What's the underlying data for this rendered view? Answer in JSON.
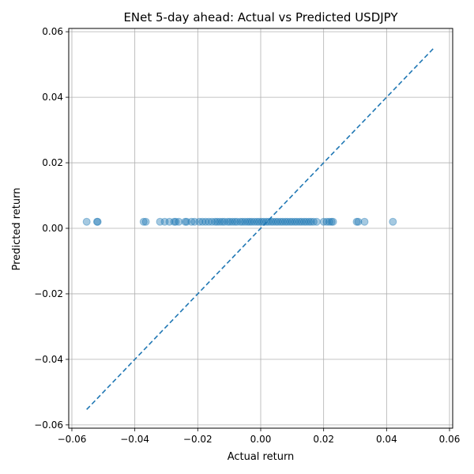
{
  "chart_data": {
    "type": "scatter",
    "title": "ENet 5-day ahead: Actual vs Predicted USDJPY",
    "xlabel": "Actual return",
    "ylabel": "Predicted return",
    "xlim": [
      -0.061,
      0.061
    ],
    "ylim": [
      -0.061,
      0.061
    ],
    "xticks": [
      -0.06,
      -0.04,
      -0.02,
      0.0,
      0.02,
      0.04,
      0.06
    ],
    "yticks": [
      -0.06,
      -0.04,
      -0.02,
      0.0,
      0.02,
      0.04,
      0.06
    ],
    "xtick_labels": [
      "−0.06",
      "−0.04",
      "−0.02",
      "0.00",
      "0.02",
      "0.04",
      "0.06"
    ],
    "ytick_labels": [
      "−0.06",
      "−0.04",
      "−0.02",
      "0.00",
      "0.02",
      "0.04",
      "0.06"
    ],
    "grid": true,
    "point_color": "#1f77b4",
    "point_alpha": 0.4,
    "reference_line": {
      "x": [
        -0.0553,
        0.0553
      ],
      "y": [
        -0.0553,
        0.0553
      ],
      "style": "dashed",
      "color": "#1f77b4"
    },
    "points": [
      {
        "x": -0.0553,
        "y": 0.002
      },
      {
        "x": -0.052,
        "y": 0.002
      },
      {
        "x": -0.0518,
        "y": 0.002
      },
      {
        "x": -0.0372,
        "y": 0.002
      },
      {
        "x": -0.0365,
        "y": 0.002
      },
      {
        "x": -0.032,
        "y": 0.002
      },
      {
        "x": -0.0305,
        "y": 0.002
      },
      {
        "x": -0.029,
        "y": 0.002
      },
      {
        "x": -0.0275,
        "y": 0.002
      },
      {
        "x": -0.027,
        "y": 0.002
      },
      {
        "x": -0.026,
        "y": 0.002
      },
      {
        "x": -0.024,
        "y": 0.002
      },
      {
        "x": -0.0235,
        "y": 0.002
      },
      {
        "x": -0.022,
        "y": 0.002
      },
      {
        "x": -0.021,
        "y": 0.002
      },
      {
        "x": -0.0195,
        "y": 0.002
      },
      {
        "x": -0.0185,
        "y": 0.002
      },
      {
        "x": -0.0175,
        "y": 0.002
      },
      {
        "x": -0.0165,
        "y": 0.002
      },
      {
        "x": -0.0155,
        "y": 0.002
      },
      {
        "x": -0.0145,
        "y": 0.002
      },
      {
        "x": -0.0138,
        "y": 0.002
      },
      {
        "x": -0.013,
        "y": 0.002
      },
      {
        "x": -0.0122,
        "y": 0.002
      },
      {
        "x": -0.0115,
        "y": 0.002
      },
      {
        "x": -0.0105,
        "y": 0.002
      },
      {
        "x": -0.0098,
        "y": 0.002
      },
      {
        "x": -0.009,
        "y": 0.002
      },
      {
        "x": -0.0082,
        "y": 0.002
      },
      {
        "x": -0.0075,
        "y": 0.002
      },
      {
        "x": -0.0065,
        "y": 0.002
      },
      {
        "x": -0.0058,
        "y": 0.002
      },
      {
        "x": -0.005,
        "y": 0.002
      },
      {
        "x": -0.0042,
        "y": 0.002
      },
      {
        "x": -0.0035,
        "y": 0.002
      },
      {
        "x": -0.0028,
        "y": 0.002
      },
      {
        "x": -0.002,
        "y": 0.002
      },
      {
        "x": -0.0012,
        "y": 0.002
      },
      {
        "x": -0.0005,
        "y": 0.002
      },
      {
        "x": 0.0003,
        "y": 0.002
      },
      {
        "x": 0.001,
        "y": 0.002
      },
      {
        "x": 0.0018,
        "y": 0.002
      },
      {
        "x": 0.0025,
        "y": 0.002
      },
      {
        "x": 0.0033,
        "y": 0.002
      },
      {
        "x": 0.004,
        "y": 0.002
      },
      {
        "x": 0.0048,
        "y": 0.002
      },
      {
        "x": 0.0055,
        "y": 0.002
      },
      {
        "x": 0.0063,
        "y": 0.002
      },
      {
        "x": 0.007,
        "y": 0.002
      },
      {
        "x": 0.0078,
        "y": 0.002
      },
      {
        "x": 0.0085,
        "y": 0.002
      },
      {
        "x": 0.0093,
        "y": 0.002
      },
      {
        "x": 0.01,
        "y": 0.002
      },
      {
        "x": 0.0108,
        "y": 0.002
      },
      {
        "x": 0.0115,
        "y": 0.002
      },
      {
        "x": 0.0123,
        "y": 0.002
      },
      {
        "x": 0.013,
        "y": 0.002
      },
      {
        "x": 0.0138,
        "y": 0.002
      },
      {
        "x": 0.0145,
        "y": 0.002
      },
      {
        "x": 0.0153,
        "y": 0.002
      },
      {
        "x": 0.016,
        "y": 0.002
      },
      {
        "x": 0.0168,
        "y": 0.002
      },
      {
        "x": 0.0178,
        "y": 0.002
      },
      {
        "x": 0.02,
        "y": 0.002
      },
      {
        "x": 0.021,
        "y": 0.002
      },
      {
        "x": 0.0218,
        "y": 0.002
      },
      {
        "x": 0.0225,
        "y": 0.002
      },
      {
        "x": 0.023,
        "y": 0.002
      },
      {
        "x": 0.0305,
        "y": 0.002
      },
      {
        "x": 0.031,
        "y": 0.002
      },
      {
        "x": 0.033,
        "y": 0.002
      },
      {
        "x": 0.042,
        "y": 0.002
      }
    ]
  }
}
